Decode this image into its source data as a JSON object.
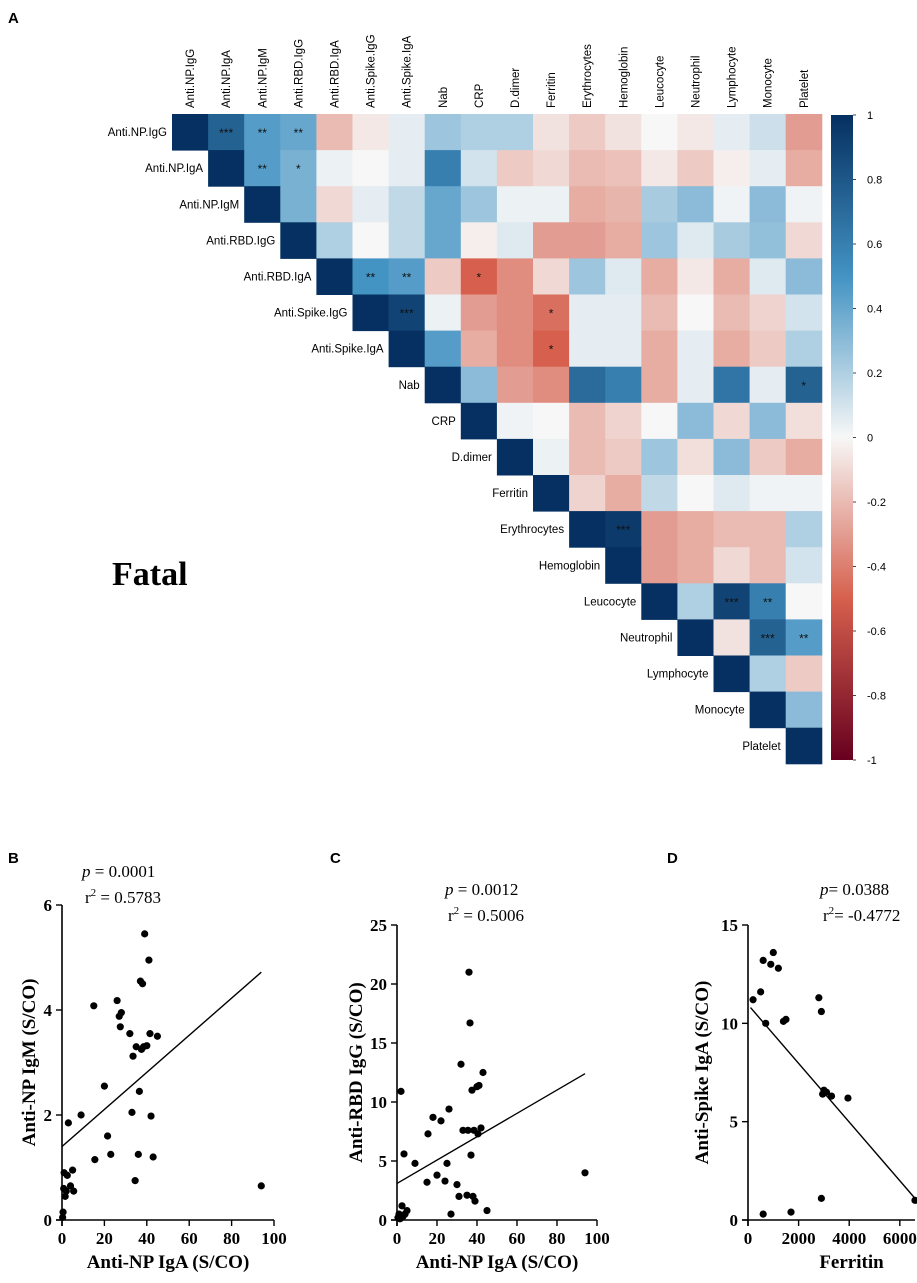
{
  "chart_data": [
    {
      "type": "heatmap",
      "panel": "A",
      "group_label": "Fatal",
      "variables": [
        "Anti.NP.IgG",
        "Anti.NP.IgA",
        "Anti.NP.IgM",
        "Anti.RBD.IgG",
        "Anti.RBD.IgA",
        "Anti.Spike.IgG",
        "Anti.Spike.IgA",
        "Nab",
        "CRP",
        "D.dimer",
        "Ferritin",
        "Erythrocytes",
        "Hemoglobin",
        "Leucocyte",
        "Neutrophil",
        "Lymphocyte",
        "Monocyte",
        "Platelet"
      ],
      "matrix_upper": [
        [
          1,
          0.75,
          0.45,
          0.4,
          -0.2,
          -0.05,
          0.05,
          0.25,
          0.2,
          0.2,
          -0.07,
          -0.15,
          -0.07,
          0.0,
          -0.05,
          0.05,
          0.12,
          -0.3
        ],
        [
          null,
          1,
          0.45,
          0.35,
          0.03,
          0.0,
          0.05,
          0.6,
          0.1,
          -0.15,
          -0.1,
          -0.2,
          -0.18,
          -0.05,
          -0.15,
          -0.03,
          0.05,
          -0.25
        ],
        [
          null,
          null,
          1,
          0.35,
          -0.1,
          0.05,
          0.15,
          0.4,
          0.25,
          0.03,
          0.03,
          -0.25,
          -0.22,
          0.22,
          0.3,
          0.02,
          0.3,
          0.02
        ],
        [
          null,
          null,
          null,
          1,
          0.2,
          0.0,
          0.15,
          0.4,
          -0.03,
          0.07,
          -0.3,
          -0.3,
          -0.25,
          0.25,
          0.07,
          0.22,
          0.28,
          -0.1
        ],
        [
          null,
          null,
          null,
          null,
          1,
          0.5,
          0.45,
          -0.15,
          -0.5,
          -0.35,
          -0.1,
          0.25,
          0.07,
          -0.25,
          -0.05,
          -0.25,
          0.07,
          0.3
        ],
        [
          null,
          null,
          null,
          null,
          null,
          1,
          0.9,
          0.03,
          -0.3,
          -0.35,
          -0.45,
          0.05,
          0.05,
          -0.2,
          0.0,
          -0.2,
          -0.12,
          0.1
        ],
        [
          null,
          null,
          null,
          null,
          null,
          null,
          1,
          0.45,
          -0.25,
          -0.35,
          -0.5,
          0.05,
          0.05,
          -0.25,
          0.05,
          -0.25,
          -0.15,
          0.2
        ],
        [
          null,
          null,
          null,
          null,
          null,
          null,
          null,
          1,
          0.3,
          -0.3,
          -0.35,
          0.7,
          0.6,
          -0.25,
          0.05,
          0.65,
          0.05,
          0.75
        ],
        [
          null,
          null,
          null,
          null,
          null,
          null,
          null,
          null,
          1,
          0.02,
          0.0,
          -0.2,
          -0.12,
          0.0,
          0.3,
          -0.1,
          0.3,
          -0.08
        ],
        [
          null,
          null,
          null,
          null,
          null,
          null,
          null,
          null,
          null,
          1,
          0.03,
          -0.2,
          -0.15,
          0.25,
          -0.08,
          0.3,
          -0.15,
          -0.25
        ],
        [
          null,
          null,
          null,
          null,
          null,
          null,
          null,
          null,
          null,
          null,
          1,
          -0.12,
          -0.25,
          0.15,
          0.0,
          0.07,
          0.02,
          0.02
        ],
        [
          null,
          null,
          null,
          null,
          null,
          null,
          null,
          null,
          null,
          null,
          null,
          1,
          0.95,
          -0.3,
          -0.25,
          -0.2,
          -0.2,
          0.2
        ],
        [
          null,
          null,
          null,
          null,
          null,
          null,
          null,
          null,
          null,
          null,
          null,
          null,
          1,
          -0.3,
          -0.25,
          -0.1,
          -0.2,
          0.1
        ],
        [
          null,
          null,
          null,
          null,
          null,
          null,
          null,
          null,
          null,
          null,
          null,
          null,
          null,
          1,
          0.2,
          0.9,
          0.6,
          0.0
        ],
        [
          null,
          null,
          null,
          null,
          null,
          null,
          null,
          null,
          null,
          null,
          null,
          null,
          null,
          null,
          1,
          -0.07,
          0.75,
          0.45
        ],
        [
          null,
          null,
          null,
          null,
          null,
          null,
          null,
          null,
          null,
          null,
          null,
          null,
          null,
          null,
          null,
          1,
          0.2,
          -0.15
        ],
        [
          null,
          null,
          null,
          null,
          null,
          null,
          null,
          null,
          null,
          null,
          null,
          null,
          null,
          null,
          null,
          null,
          1,
          0.3
        ],
        [
          null,
          null,
          null,
          null,
          null,
          null,
          null,
          null,
          null,
          null,
          null,
          null,
          null,
          null,
          null,
          null,
          null,
          1
        ]
      ],
      "significance": [
        {
          "row": 0,
          "col": 1,
          "mark": "***"
        },
        {
          "row": 0,
          "col": 2,
          "mark": "**"
        },
        {
          "row": 0,
          "col": 3,
          "mark": "**"
        },
        {
          "row": 1,
          "col": 2,
          "mark": "**"
        },
        {
          "row": 1,
          "col": 3,
          "mark": "*"
        },
        {
          "row": 4,
          "col": 5,
          "mark": "**"
        },
        {
          "row": 4,
          "col": 6,
          "mark": "**"
        },
        {
          "row": 4,
          "col": 8,
          "mark": "*"
        },
        {
          "row": 5,
          "col": 6,
          "mark": "***"
        },
        {
          "row": 5,
          "col": 10,
          "mark": "*"
        },
        {
          "row": 6,
          "col": 10,
          "mark": "*"
        },
        {
          "row": 7,
          "col": 17,
          "mark": "*"
        },
        {
          "row": 11,
          "col": 12,
          "mark": "***"
        },
        {
          "row": 13,
          "col": 15,
          "mark": "***"
        },
        {
          "row": 13,
          "col": 16,
          "mark": "**"
        },
        {
          "row": 14,
          "col": 16,
          "mark": "***"
        },
        {
          "row": 14,
          "col": 17,
          "mark": "**"
        }
      ],
      "colorbar": {
        "range": [
          -1,
          1
        ],
        "tick_labels": [
          "1",
          "0.8",
          "0.6",
          "0.4",
          "0.2",
          "0",
          "-0.2",
          "-0.4",
          "-0.6",
          "-0.8",
          "-1"
        ],
        "colors": {
          "neg": "#67001f",
          "neg_mid": "#d6604d",
          "zero": "#f7f7f7",
          "pos_mid": "#4393c3",
          "pos": "#053061"
        }
      }
    },
    {
      "type": "scatter",
      "panel": "B",
      "xlabel": "Anti-NP IgA (S/CO)",
      "ylabel": "Anti-NP IgM (S/CO)",
      "xlim": [
        0,
        100
      ],
      "ylim": [
        0,
        6
      ],
      "xticks": [
        "0",
        "20",
        "40",
        "60",
        "80",
        "100"
      ],
      "yticks": [
        "0",
        "2",
        "4",
        "6"
      ],
      "p_value": "0.0001",
      "r_squared": "0.5783",
      "fit_line": {
        "x": [
          0,
          94
        ],
        "y": [
          1.4,
          4.72
        ]
      },
      "points": [
        [
          0.3,
          0.05
        ],
        [
          0.5,
          0.15
        ],
        [
          0.8,
          0.6
        ],
        [
          1,
          0.9
        ],
        [
          1.5,
          0.45
        ],
        [
          2,
          0.55
        ],
        [
          2.5,
          0.85
        ],
        [
          3,
          1.85
        ],
        [
          4,
          0.65
        ],
        [
          5,
          0.95
        ],
        [
          5.5,
          0.55
        ],
        [
          9,
          2.0
        ],
        [
          15,
          4.08
        ],
        [
          15.5,
          1.15
        ],
        [
          20,
          2.55
        ],
        [
          21.5,
          1.6
        ],
        [
          23,
          1.25
        ],
        [
          26,
          4.18
        ],
        [
          27,
          3.88
        ],
        [
          27.5,
          3.68
        ],
        [
          28,
          3.95
        ],
        [
          32,
          3.55
        ],
        [
          33,
          2.05
        ],
        [
          33.5,
          3.12
        ],
        [
          34.5,
          0.75
        ],
        [
          35,
          3.3
        ],
        [
          36,
          1.25
        ],
        [
          36.5,
          2.45
        ],
        [
          37.5,
          3.25
        ],
        [
          37,
          4.55
        ],
        [
          38,
          4.5
        ],
        [
          38.5,
          3.3
        ],
        [
          39,
          5.45
        ],
        [
          40,
          3.32
        ],
        [
          41,
          4.95
        ],
        [
          41.5,
          3.55
        ],
        [
          42,
          1.98
        ],
        [
          43,
          1.2
        ],
        [
          45,
          3.5
        ],
        [
          94,
          0.65
        ]
      ]
    },
    {
      "type": "scatter",
      "panel": "C",
      "xlabel": "Anti-NP IgA (S/CO)",
      "ylabel": "Anti-RBD IgG (S/CO)",
      "xlim": [
        0,
        100
      ],
      "ylim": [
        0,
        25
      ],
      "xticks": [
        "0",
        "20",
        "40",
        "60",
        "80",
        "100"
      ],
      "yticks": [
        "0",
        "5",
        "10",
        "15",
        "20",
        "25"
      ],
      "p_value": "0.0012",
      "r_squared": "0.5006",
      "fit_line": {
        "x": [
          0,
          94
        ],
        "y": [
          3.1,
          12.4
        ]
      },
      "points": [
        [
          0.5,
          0.2
        ],
        [
          1,
          0.5
        ],
        [
          1.5,
          0.1
        ],
        [
          2,
          10.9
        ],
        [
          2.5,
          1.2
        ],
        [
          3,
          0.3
        ],
        [
          4,
          0.5
        ],
        [
          3.5,
          5.6
        ],
        [
          5,
          0.8
        ],
        [
          9,
          4.8
        ],
        [
          15,
          3.2
        ],
        [
          15.5,
          7.3
        ],
        [
          18,
          8.7
        ],
        [
          20,
          3.8
        ],
        [
          22,
          8.4
        ],
        [
          24,
          3.3
        ],
        [
          25,
          4.8
        ],
        [
          26,
          9.4
        ],
        [
          27,
          0.5
        ],
        [
          30,
          3.0
        ],
        [
          31,
          2.0
        ],
        [
          32,
          13.2
        ],
        [
          33,
          7.6
        ],
        [
          35,
          2.1
        ],
        [
          35.5,
          7.6
        ],
        [
          36,
          21.0
        ],
        [
          36.5,
          16.7
        ],
        [
          37,
          5.5
        ],
        [
          37.5,
          11.0
        ],
        [
          38,
          2.0
        ],
        [
          38.5,
          7.6
        ],
        [
          39,
          1.6
        ],
        [
          40,
          11.3
        ],
        [
          40.5,
          7.3
        ],
        [
          41,
          11.4
        ],
        [
          42,
          7.8
        ],
        [
          43,
          12.5
        ],
        [
          45,
          0.8
        ],
        [
          94,
          4.0
        ]
      ]
    },
    {
      "type": "scatter",
      "panel": "D",
      "xlabel": "Ferritin",
      "ylabel": "Anti-Spike IgA (S/CO)",
      "xlim": [
        0,
        6600
      ],
      "ylim": [
        0,
        15
      ],
      "xticks": [
        "0",
        "2000",
        "4000",
        "6000"
      ],
      "yticks": [
        "0",
        "5",
        "10",
        "15"
      ],
      "p_value": "0.0388",
      "r_squared": "-0.4772",
      "fit_line": {
        "x": [
          100,
          6600
        ],
        "y": [
          10.8,
          1.1
        ]
      },
      "points": [
        [
          200,
          11.2
        ],
        [
          500,
          11.6
        ],
        [
          600,
          13.2
        ],
        [
          700,
          10.0
        ],
        [
          900,
          13.0
        ],
        [
          1000,
          13.6
        ],
        [
          1200,
          12.8
        ],
        [
          1400,
          10.1
        ],
        [
          1500,
          10.2
        ],
        [
          600,
          0.3
        ],
        [
          1700,
          0.4
        ],
        [
          2800,
          11.3
        ],
        [
          2900,
          10.6
        ],
        [
          2950,
          6.4
        ],
        [
          3000,
          6.6
        ],
        [
          3100,
          6.5
        ],
        [
          3300,
          6.3
        ],
        [
          3950,
          6.2
        ],
        [
          2900,
          1.1
        ],
        [
          6600,
          1.0
        ]
      ]
    }
  ]
}
